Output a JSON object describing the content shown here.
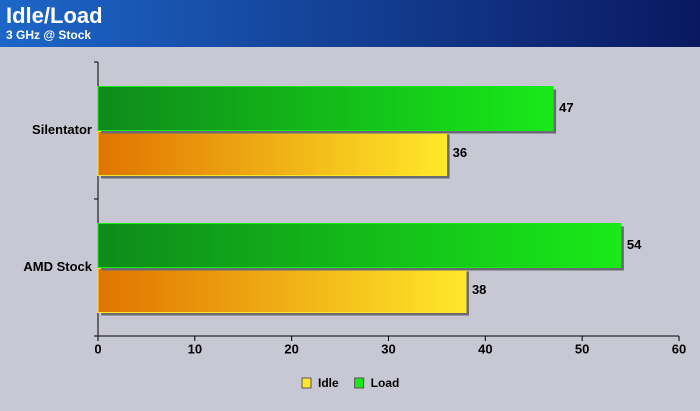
{
  "chart_data": {
    "type": "hbar",
    "title": "Idle/Load",
    "subtitle": "3 GHz @ Stock",
    "categories": [
      "Silentator",
      "AMD Stock"
    ],
    "series": [
      {
        "name": "Idle",
        "color": "#ffe82a",
        "values": [
          36,
          38
        ]
      },
      {
        "name": "Load",
        "color": "#18ea18",
        "values": [
          47,
          54
        ]
      }
    ],
    "xlim": [
      0,
      60
    ],
    "xticks": [
      0,
      10,
      20,
      30,
      40,
      50,
      60
    ],
    "legend": "bottom"
  }
}
